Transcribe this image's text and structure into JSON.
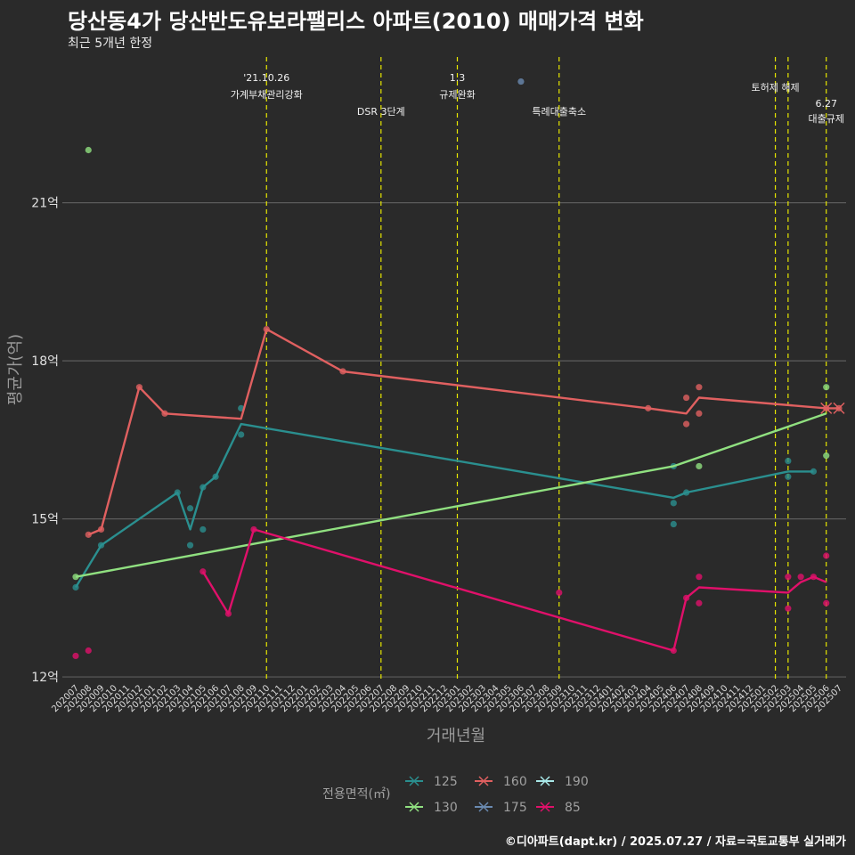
{
  "header": {
    "title": "당산동4가 당산반도유보라팰리스 아파트(2010) 매매가격 변화",
    "subtitle": "최근 5개년 한정",
    "caption": "©디아파트(dapt.kr) / 2025.07.27 / 자료=국토교통부 실거래가"
  },
  "chart_data": {
    "type": "line",
    "title": "당산동4가 당산반도유보라팰리스 아파트(2010) 매매가격 변화",
    "subtitle": "최근 5개년 한정",
    "xlabel": "거래년월",
    "ylabel": "평균가(억)",
    "ylim": [
      11.9,
      23.8
    ],
    "y_ticks": [
      12,
      15,
      18,
      21
    ],
    "y_tick_labels": [
      "12억",
      "15억",
      "18억",
      "21억"
    ],
    "x_ticks": [
      "202007",
      "202008",
      "202009",
      "202010",
      "202011",
      "202012",
      "202101",
      "202102",
      "202103",
      "202104",
      "202105",
      "202106",
      "202107",
      "202108",
      "202109",
      "202110",
      "202111",
      "202112",
      "202201",
      "202202",
      "202203",
      "202204",
      "202205",
      "202206",
      "202207",
      "202208",
      "202209",
      "202210",
      "202211",
      "202212",
      "202301",
      "202302",
      "202303",
      "202304",
      "202305",
      "202306",
      "202307",
      "202308",
      "202309",
      "202310",
      "202311",
      "202312",
      "202401",
      "202402",
      "202403",
      "202404",
      "202405",
      "202406",
      "202407",
      "202408",
      "202409",
      "202410",
      "202411",
      "202412",
      "202501",
      "202502",
      "202503",
      "202504",
      "202505",
      "202506",
      "202507"
    ],
    "legend_title": "전용면적(㎡)",
    "grid": true,
    "series": [
      {
        "name": "125",
        "color": "#2a8f8f",
        "points": [
          [
            "202007",
            13.7
          ],
          [
            "202009",
            14.5
          ],
          [
            "202103",
            15.5
          ],
          [
            "202104",
            15.2
          ],
          [
            "202104",
            14.5
          ],
          [
            "202105",
            14.8
          ],
          [
            "202105",
            15.6
          ],
          [
            "202106",
            15.8
          ],
          [
            "202108",
            16.6
          ],
          [
            "202108",
            17.1
          ],
          [
            "202406",
            15.3
          ],
          [
            "202406",
            14.9
          ],
          [
            "202406",
            16.0
          ],
          [
            "202407",
            15.5
          ],
          [
            "202503",
            15.8
          ],
          [
            "202503",
            16.1
          ],
          [
            "202505",
            15.9
          ]
        ],
        "line": [
          [
            "202007",
            13.7
          ],
          [
            "202009",
            14.5
          ],
          [
            "202103",
            15.5
          ],
          [
            "202104",
            14.8
          ],
          [
            "202105",
            15.6
          ],
          [
            "202106",
            15.8
          ],
          [
            "202108",
            16.8
          ],
          [
            "202406",
            15.4
          ],
          [
            "202407",
            15.5
          ],
          [
            "202503",
            15.9
          ],
          [
            "202505",
            15.9
          ]
        ]
      },
      {
        "name": "160",
        "color": "#e06060",
        "points": [
          [
            "202008",
            14.7
          ],
          [
            "202009",
            14.8
          ],
          [
            "202012",
            17.5
          ],
          [
            "202102",
            17.0
          ],
          [
            "202110",
            18.6
          ],
          [
            "202204",
            17.8
          ],
          [
            "202404",
            17.1
          ],
          [
            "202407",
            17.3
          ],
          [
            "202407",
            16.8
          ],
          [
            "202408",
            17.5
          ],
          [
            "202408",
            17.0
          ],
          [
            "202506",
            17.1
          ],
          [
            "202507",
            17.1
          ]
        ],
        "line": [
          [
            "202008",
            14.7
          ],
          [
            "202009",
            14.8
          ],
          [
            "202012",
            17.5
          ],
          [
            "202102",
            17.0
          ],
          [
            "202108",
            16.9
          ],
          [
            "202110",
            18.6
          ],
          [
            "202204",
            17.8
          ],
          [
            "202404",
            17.1
          ],
          [
            "202407",
            17.0
          ],
          [
            "202408",
            17.3
          ],
          [
            "202506",
            17.1
          ],
          [
            "202507",
            17.1
          ]
        ]
      },
      {
        "name": "190",
        "color": "#a8e8e8",
        "points": [],
        "line": []
      },
      {
        "name": "130",
        "color": "#90e080",
        "points": [
          [
            "202007",
            13.9
          ],
          [
            "202008",
            22.0
          ],
          [
            "202408",
            16.0
          ],
          [
            "202506",
            17.5
          ],
          [
            "202506",
            16.2
          ]
        ],
        "line": [
          [
            "202007",
            13.9
          ],
          [
            "202406",
            16.0
          ],
          [
            "202506",
            17.0
          ]
        ]
      },
      {
        "name": "175",
        "color": "#6a8ab0",
        "points": [
          [
            "202306",
            23.3
          ]
        ],
        "line": []
      },
      {
        "name": "85",
        "color": "#e0106a",
        "points": [
          [
            "202007",
            12.4
          ],
          [
            "202008",
            12.5
          ],
          [
            "202105",
            14.0
          ],
          [
            "202107",
            13.2
          ],
          [
            "202109",
            14.8
          ],
          [
            "202309",
            13.6
          ],
          [
            "202406",
            12.5
          ],
          [
            "202407",
            13.5
          ],
          [
            "202408",
            13.9
          ],
          [
            "202408",
            13.4
          ],
          [
            "202503",
            13.3
          ],
          [
            "202503",
            13.9
          ],
          [
            "202504",
            13.9
          ],
          [
            "202505",
            13.9
          ],
          [
            "202506",
            14.3
          ],
          [
            "202506",
            13.4
          ]
        ],
        "line": [
          [
            "202105",
            14.0
          ],
          [
            "202107",
            13.2
          ],
          [
            "202109",
            14.8
          ],
          [
            "202406",
            12.5
          ],
          [
            "202407",
            13.5
          ],
          [
            "202408",
            13.7
          ],
          [
            "202503",
            13.6
          ],
          [
            "202504",
            13.8
          ],
          [
            "202505",
            13.9
          ],
          [
            "202506",
            13.8
          ]
        ]
      }
    ],
    "events": [
      {
        "month": "202110",
        "label1": "'21.10.26",
        "label2": "가계부채관리강화",
        "row": 1
      },
      {
        "month": "202207",
        "label1": "DSR 3단계",
        "label2": "",
        "row": 3
      },
      {
        "month": "202301",
        "label1": "1.3",
        "label2": "규제완화",
        "row": 1
      },
      {
        "month": "202309",
        "label1": "특례대출축소",
        "label2": "",
        "row": 3
      },
      {
        "month": "202502",
        "label1": "토허제 해제",
        "label2": "",
        "row": 2
      },
      {
        "month": "202503",
        "label1": "",
        "label2": "",
        "row": 0
      },
      {
        "month": "202506",
        "label1": "6.27",
        "label2": "대출규제",
        "row": 4
      }
    ]
  }
}
